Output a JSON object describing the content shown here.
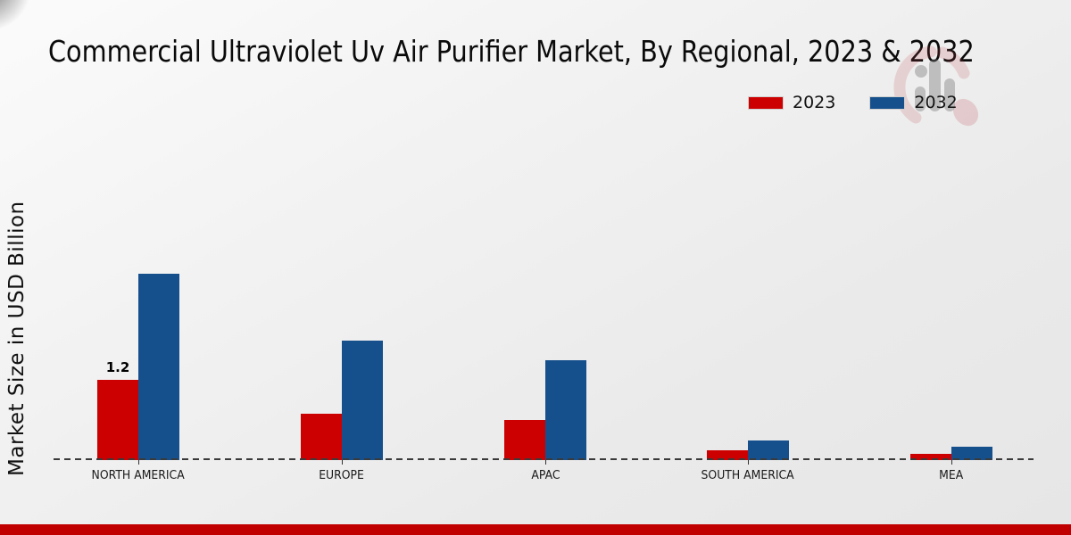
{
  "title": "Commercial Ultraviolet Uv Air Purifier Market, By Regional, 2023 & 2032",
  "y_axis_label": "Market Size in USD Billion",
  "legend": {
    "position": "upper-right",
    "items": [
      {
        "label": "2023",
        "color": "#cc0000"
      },
      {
        "label": "2032",
        "color": "#15508c"
      }
    ]
  },
  "watermark": {
    "icon": "market-research-logo-watermark"
  },
  "footer": {
    "band_color": "#c00000"
  },
  "chart_data": {
    "type": "bar",
    "title": "Commercial Ultraviolet Uv Air Purifier Market, By Regional, 2023 & 2032",
    "categories": [
      "NORTH AMERICA",
      "EUROPE",
      "APAC",
      "SOUTH AMERICA",
      "MEA"
    ],
    "series": [
      {
        "name": "2023",
        "color": "#cc0000",
        "values": [
          1.2,
          0.7,
          0.6,
          0.15,
          0.1
        ],
        "bar_labels": [
          "1.2",
          "",
          "",
          "",
          ""
        ]
      },
      {
        "name": "2032",
        "color": "#15508c",
        "values": [
          2.8,
          1.8,
          1.5,
          0.3,
          0.2
        ],
        "bar_labels": [
          "",
          "",
          "",
          "",
          ""
        ]
      }
    ],
    "xlabel": "",
    "ylabel": "Market Size in USD Billion",
    "ylim": [
      0,
      3.2
    ],
    "grid": false,
    "legend_position": "upper right",
    "x_baseline_style": "dashed"
  }
}
